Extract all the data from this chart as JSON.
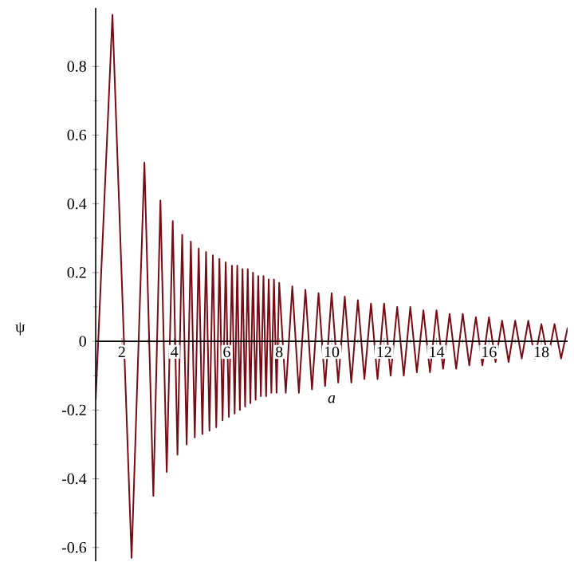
{
  "chart_data": {
    "type": "line",
    "xlabel": "a",
    "ylabel": "ψ",
    "xlim": [
      1,
      19
    ],
    "ylim": [
      -0.64,
      0.97
    ],
    "xticks": [
      2,
      4,
      6,
      8,
      10,
      12,
      14,
      16,
      18
    ],
    "yticks": [
      -0.6,
      -0.4,
      -0.2,
      0,
      0.2,
      0.4,
      0.6,
      0.8
    ],
    "grid": false,
    "marker": "none",
    "line_style": "solid",
    "series": [
      {
        "color": "#7a0a14",
        "x": [
          1,
          1.64,
          2.37,
          2.86,
          3.2,
          3.47,
          3.71,
          3.94,
          4.12,
          4.3,
          4.47,
          4.63,
          4.78,
          4.93,
          5.07,
          5.21,
          5.34,
          5.47,
          5.6,
          5.72,
          5.84,
          5.96,
          6.08,
          6.2,
          6.3,
          6.4,
          6.5,
          6.6,
          6.7,
          6.8,
          6.9,
          7.0,
          7.1,
          7.2,
          7.3,
          7.4,
          7.5,
          7.6,
          7.7,
          7.8,
          7.9,
          8.0,
          8.25,
          8.5,
          8.75,
          9,
          9.25,
          9.5,
          9.75,
          10,
          10.25,
          10.5,
          10.75,
          11,
          11.25,
          11.5,
          11.75,
          12,
          12.25,
          12.5,
          12.75,
          13,
          13.25,
          13.5,
          13.75,
          14,
          14.25,
          14.5,
          14.75,
          15,
          15.25,
          15.5,
          15.75,
          16,
          16.25,
          16.5,
          16.75,
          17,
          17.25,
          17.5,
          17.75,
          18,
          18.25,
          18.5,
          18.75,
          19
        ],
        "values": [
          -0.17,
          0.95,
          -0.63,
          0.52,
          -0.45,
          0.41,
          -0.38,
          0.35,
          -0.33,
          0.31,
          -0.3,
          0.29,
          -0.28,
          0.27,
          -0.27,
          0.26,
          -0.26,
          0.25,
          -0.25,
          0.24,
          -0.23,
          0.23,
          -0.22,
          0.22,
          -0.21,
          0.22,
          -0.2,
          0.21,
          -0.19,
          0.21,
          -0.18,
          0.2,
          -0.17,
          0.19,
          -0.16,
          0.19,
          -0.16,
          0.18,
          -0.15,
          0.18,
          -0.15,
          0.17,
          -0.15,
          0.16,
          -0.15,
          0.15,
          -0.14,
          0.14,
          -0.13,
          0.14,
          -0.12,
          0.13,
          -0.12,
          0.12,
          -0.11,
          0.11,
          -0.11,
          0.11,
          -0.1,
          0.1,
          -0.1,
          0.1,
          -0.09,
          0.09,
          -0.09,
          0.09,
          -0.08,
          0.08,
          -0.08,
          0.08,
          -0.07,
          0.07,
          -0.07,
          0.07,
          -0.06,
          0.06,
          -0.06,
          0.06,
          -0.05,
          0.06,
          -0.05,
          0.05,
          -0.05,
          0.05,
          -0.05,
          0.04
        ]
      }
    ]
  }
}
